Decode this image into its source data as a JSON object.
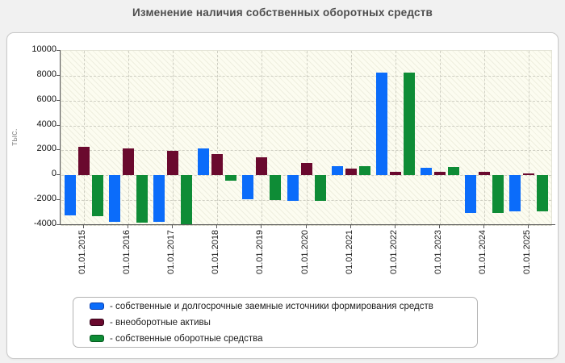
{
  "title": "Изменение наличия собственных оборотных средств",
  "legend_prefix": "- ",
  "chart_data": {
    "type": "bar",
    "title": "Изменение наличия собственных оборотных средств",
    "ylabel": "тыс.",
    "xlabel": "",
    "ylim": [
      -4000,
      10000
    ],
    "yticks": [
      10000,
      8000,
      6000,
      4000,
      2000,
      0,
      -2000,
      -4000
    ],
    "grid": true,
    "legend_position": "bottom",
    "categories": [
      "01.01.2015",
      "01.01.2016",
      "01.01.2017",
      "01.01.2018",
      "01.01.2019",
      "01.01.2020",
      "01.01.2021",
      "01.01.2022",
      "01.01.2023",
      "01.01.2024",
      "01.01.2025"
    ],
    "series": [
      {
        "name": "собственные и долгосрочные заемные источники формирования средств",
        "color": "#0b6cfa",
        "border_color": "#0a3faf",
        "values": [
          -3250,
          -3750,
          -3750,
          2150,
          -1900,
          -2050,
          750,
          8250,
          600,
          -3000,
          -2900
        ]
      },
      {
        "name": "внеоборотные активы",
        "color": "#6a092e",
        "border_color": "#33041a",
        "values": [
          2300,
          2150,
          1950,
          1700,
          1450,
          1000,
          550,
          250,
          250,
          250,
          150
        ]
      },
      {
        "name": "собственные оборотные средства",
        "color": "#0e8c36",
        "border_color": "#075a20",
        "values": [
          -3300,
          -3800,
          -4000,
          -450,
          -2000,
          -2050,
          750,
          8250,
          650,
          -3000,
          -2900
        ]
      }
    ]
  }
}
